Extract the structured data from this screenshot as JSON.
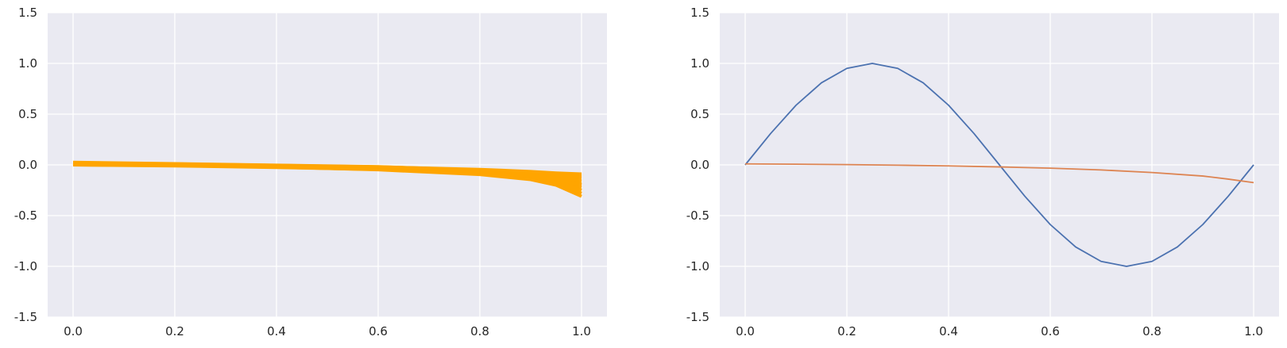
{
  "chart_data": [
    {
      "type": "line",
      "title": "",
      "xlabel": "",
      "ylabel": "",
      "xlim": [
        -0.05,
        1.05
      ],
      "ylim": [
        -1.5,
        1.5
      ],
      "xticks": [
        "0.0",
        "0.2",
        "0.4",
        "0.6",
        "0.8",
        "1.0"
      ],
      "yticks": [
        "-1.5",
        "-1.0",
        "-0.5",
        "0.0",
        "0.5",
        "1.0",
        "1.5"
      ],
      "grid": true,
      "legend": "none",
      "series_color": "#ffa500",
      "series": [
        {
          "x": [
            0,
            0.2,
            0.4,
            0.6,
            0.8,
            0.9,
            0.95,
            1.0
          ],
          "y": [
            0.02,
            0.01,
            -0.005,
            -0.02,
            -0.045,
            -0.065,
            -0.08,
            -0.09
          ]
        },
        {
          "x": [
            0,
            0.2,
            0.4,
            0.6,
            0.8,
            0.9,
            0.95,
            1.0
          ],
          "y": [
            0.015,
            0.005,
            -0.01,
            -0.03,
            -0.06,
            -0.09,
            -0.11,
            -0.13
          ]
        },
        {
          "x": [
            0,
            0.2,
            0.4,
            0.6,
            0.8,
            0.9,
            0.95,
            1.0
          ],
          "y": [
            0.01,
            0.0,
            -0.015,
            -0.035,
            -0.07,
            -0.1,
            -0.13,
            -0.16
          ]
        },
        {
          "x": [
            0,
            0.2,
            0.4,
            0.6,
            0.8,
            0.9,
            0.95,
            1.0
          ],
          "y": [
            0.005,
            -0.005,
            -0.02,
            -0.04,
            -0.08,
            -0.12,
            -0.15,
            -0.19
          ]
        },
        {
          "x": [
            0,
            0.2,
            0.4,
            0.6,
            0.8,
            0.9,
            0.95,
            1.0
          ],
          "y": [
            0.0,
            -0.01,
            -0.025,
            -0.045,
            -0.09,
            -0.13,
            -0.17,
            -0.22
          ]
        },
        {
          "x": [
            0,
            0.2,
            0.4,
            0.6,
            0.8,
            0.9,
            0.95,
            1.0
          ],
          "y": [
            0.02,
            0.008,
            -0.012,
            -0.03,
            -0.075,
            -0.12,
            -0.16,
            -0.25
          ]
        },
        {
          "x": [
            0,
            0.2,
            0.4,
            0.6,
            0.8,
            0.9,
            0.95,
            1.0
          ],
          "y": [
            0.01,
            0.002,
            -0.015,
            -0.04,
            -0.085,
            -0.13,
            -0.18,
            -0.28
          ]
        },
        {
          "x": [
            0,
            0.2,
            0.4,
            0.6,
            0.8,
            0.9,
            0.95,
            1.0
          ],
          "y": [
            0.0,
            -0.006,
            -0.022,
            -0.048,
            -0.095,
            -0.145,
            -0.2,
            -0.31
          ]
        },
        {
          "x": [
            0,
            0.2,
            0.4,
            0.6,
            0.8,
            0.9,
            0.95,
            1.0
          ],
          "y": [
            0.025,
            0.012,
            -0.003,
            -0.018,
            -0.05,
            -0.075,
            -0.095,
            -0.11
          ]
        },
        {
          "x": [
            0,
            0.2,
            0.4,
            0.6,
            0.8,
            0.9,
            0.95,
            1.0
          ],
          "y": [
            0.012,
            0.001,
            -0.018,
            -0.038,
            -0.078,
            -0.11,
            -0.14,
            -0.2
          ]
        }
      ]
    },
    {
      "type": "line",
      "title": "",
      "xlabel": "",
      "ylabel": "",
      "xlim": [
        -0.05,
        1.05
      ],
      "ylim": [
        -1.5,
        1.5
      ],
      "xticks": [
        "0.0",
        "0.2",
        "0.4",
        "0.6",
        "0.8",
        "1.0"
      ],
      "yticks": [
        "-1.5",
        "-1.0",
        "-0.5",
        "0.0",
        "0.5",
        "1.0",
        "1.5"
      ],
      "grid": true,
      "legend": "none",
      "series": [
        {
          "color": "#4c72b0",
          "x": [
            0,
            0.05,
            0.1,
            0.15,
            0.2,
            0.25,
            0.3,
            0.35,
            0.4,
            0.45,
            0.5,
            0.55,
            0.6,
            0.65,
            0.7,
            0.75,
            0.8,
            0.85,
            0.9,
            0.95,
            1.0
          ],
          "y": [
            0,
            0.309,
            0.588,
            0.809,
            0.951,
            1.0,
            0.951,
            0.809,
            0.588,
            0.309,
            0.0,
            -0.309,
            -0.588,
            -0.809,
            -0.951,
            -1.0,
            -0.951,
            -0.809,
            -0.588,
            -0.309,
            0.0
          ]
        },
        {
          "color": "#dd8452",
          "x": [
            0,
            0.1,
            0.2,
            0.3,
            0.4,
            0.5,
            0.6,
            0.7,
            0.8,
            0.9,
            0.95,
            1.0
          ],
          "y": [
            0.01,
            0.007,
            0.003,
            -0.003,
            -0.01,
            -0.02,
            -0.032,
            -0.05,
            -0.075,
            -0.11,
            -0.14,
            -0.175
          ]
        }
      ]
    }
  ]
}
